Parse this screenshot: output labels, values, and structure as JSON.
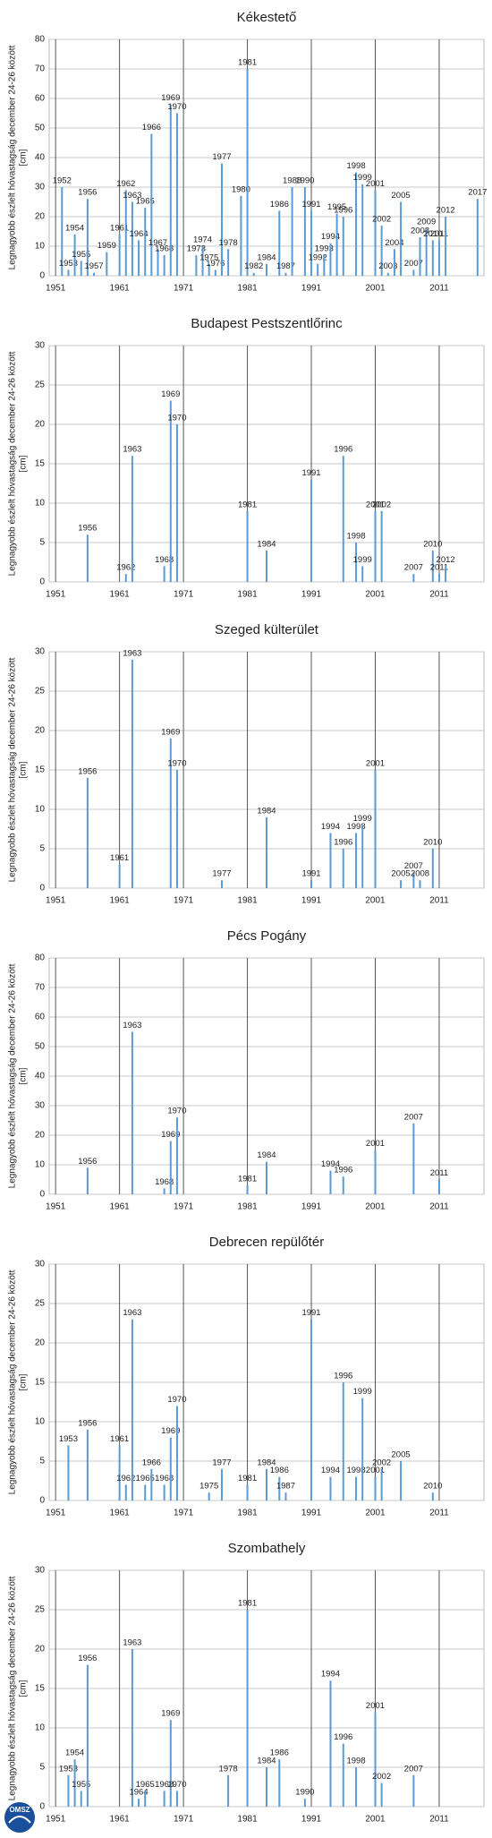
{
  "chart_data": [
    {
      "type": "bar",
      "title": "Kékestető",
      "ylabel": [
        "Legnagyobb észlelt hóvastagság december 24-26 között",
        "[cm]"
      ],
      "color": "#5b9bd5",
      "grid": true,
      "x": [
        1952,
        1953,
        1954,
        1955,
        1956,
        1957,
        1959,
        1961,
        1962,
        1963,
        1964,
        1965,
        1966,
        1967,
        1968,
        1969,
        1970,
        1973,
        1974,
        1975,
        1976,
        1977,
        1978,
        1980,
        1981,
        1982,
        1984,
        1986,
        1987,
        1988,
        1990,
        1991,
        1992,
        1993,
        1994,
        1995,
        1996,
        1998,
        1999,
        2001,
        2002,
        2003,
        2004,
        2005,
        2007,
        2008,
        2009,
        2010,
        2011,
        2012,
        2017
      ],
      "values": [
        30,
        2,
        14,
        5,
        26,
        1,
        8,
        14,
        29,
        25,
        12,
        23,
        48,
        9,
        7,
        58,
        55,
        7,
        10,
        4,
        2,
        38,
        9,
        27,
        70,
        1,
        4,
        22,
        1,
        30,
        30,
        22,
        4,
        7,
        11,
        21,
        20,
        35,
        31,
        29,
        17,
        1,
        9,
        25,
        2,
        13,
        16,
        12,
        12,
        20,
        26
      ],
      "xlim": [
        1950,
        2018
      ],
      "xticks": [
        1951,
        1961,
        1971,
        1981,
        1991,
        2001,
        2011
      ],
      "ylim": [
        0,
        80
      ],
      "yticks": [
        0,
        10,
        20,
        30,
        40,
        50,
        60,
        70,
        80
      ]
    },
    {
      "type": "bar",
      "title": "Budapest Pestszentlőrinc",
      "ylabel": [
        "Legnagyobb észlelt hóvastagság december 24-26 között",
        "[cm]"
      ],
      "color": "#5b9bd5",
      "grid": true,
      "x": [
        1956,
        1962,
        1963,
        1968,
        1969,
        1970,
        1981,
        1984,
        1991,
        1996,
        1998,
        1999,
        2001,
        2002,
        2007,
        2010,
        2011,
        2012
      ],
      "values": [
        6,
        1,
        16,
        2,
        23,
        20,
        9,
        4,
        13,
        16,
        5,
        2,
        9,
        9,
        1,
        4,
        1,
        2
      ],
      "xlim": [
        1950,
        2018
      ],
      "xticks": [
        1951,
        1961,
        1971,
        1981,
        1991,
        2001,
        2011
      ],
      "ylim": [
        0,
        30
      ],
      "yticks": [
        0,
        5,
        10,
        15,
        20,
        25,
        30
      ]
    },
    {
      "type": "bar",
      "title": "Szeged külterület",
      "ylabel": [
        "Legnagyobb észlelt hóvastagság december 24-26 között",
        "[cm]"
      ],
      "color": "#5b9bd5",
      "grid": true,
      "x": [
        1956,
        1961,
        1963,
        1969,
        1970,
        1977,
        1984,
        1991,
        1994,
        1996,
        1998,
        1999,
        2001,
        2005,
        2007,
        2008,
        2010
      ],
      "values": [
        14,
        3,
        29,
        19,
        15,
        1,
        9,
        1,
        7,
        5,
        7,
        8,
        15,
        1,
        2,
        1,
        5
      ],
      "xlim": [
        1950,
        2018
      ],
      "xticks": [
        1951,
        1961,
        1971,
        1981,
        1991,
        2001,
        2011
      ],
      "ylim": [
        0,
        30
      ],
      "yticks": [
        0,
        5,
        10,
        15,
        20,
        25,
        30
      ]
    },
    {
      "type": "bar",
      "title": "Pécs Pogány",
      "ylabel": [
        "Legnagyobb észlelt hóvastagság december 24-26 között",
        "[cm]"
      ],
      "color": "#5b9bd5",
      "grid": true,
      "x": [
        1956,
        1963,
        1968,
        1969,
        1970,
        1981,
        1984,
        1994,
        1996,
        2001,
        2007,
        2011
      ],
      "values": [
        9,
        55,
        2,
        18,
        26,
        3,
        11,
        8,
        6,
        15,
        24,
        5
      ],
      "xlim": [
        1950,
        2018
      ],
      "xticks": [
        1951,
        1961,
        1971,
        1981,
        1991,
        2001,
        2011
      ],
      "ylim": [
        0,
        80
      ],
      "yticks": [
        0,
        10,
        20,
        30,
        40,
        50,
        60,
        70,
        80
      ]
    },
    {
      "type": "bar",
      "title": "Debrecen repülőtér",
      "ylabel": [
        "Legnagyobb észlelt hóvastagság december 24-26 között",
        "[cm]"
      ],
      "color": "#5b9bd5",
      "grid": true,
      "x": [
        1953,
        1956,
        1961,
        1962,
        1963,
        1965,
        1966,
        1968,
        1969,
        1970,
        1975,
        1977,
        1981,
        1984,
        1986,
        1987,
        1991,
        1994,
        1996,
        1998,
        1999,
        2001,
        2002,
        2005,
        2010
      ],
      "values": [
        7,
        9,
        7,
        2,
        23,
        2,
        4,
        2,
        8,
        12,
        1,
        4,
        2,
        4,
        3,
        1,
        23,
        3,
        15,
        3,
        13,
        3,
        4,
        5,
        1
      ],
      "xlim": [
        1950,
        2018
      ],
      "xticks": [
        1951,
        1961,
        1971,
        1981,
        1991,
        2001,
        2011
      ],
      "ylim": [
        0,
        30
      ],
      "yticks": [
        0,
        5,
        10,
        15,
        20,
        25,
        30
      ]
    },
    {
      "type": "bar",
      "title": "Szombathely",
      "ylabel": [
        "Legnagyobb észlelt hóvastagság december 24-26 között",
        "[cm]"
      ],
      "color": "#5b9bd5",
      "grid": true,
      "x": [
        1953,
        1954,
        1955,
        1956,
        1963,
        1964,
        1965,
        1968,
        1969,
        1970,
        1978,
        1981,
        1984,
        1986,
        1990,
        1994,
        1996,
        1998,
        2001,
        2002,
        2007
      ],
      "values": [
        4,
        6,
        2,
        18,
        20,
        1,
        2,
        2,
        11,
        2,
        4,
        25,
        5,
        6,
        1,
        16,
        8,
        5,
        12,
        3,
        4
      ],
      "xlim": [
        1950,
        2018
      ],
      "xticks": [
        1951,
        1961,
        1971,
        1981,
        1991,
        2001,
        2011
      ],
      "ylim": [
        0,
        30
      ],
      "yticks": [
        0,
        5,
        10,
        15,
        20,
        25,
        30
      ]
    }
  ],
  "logo": "OMSZ"
}
